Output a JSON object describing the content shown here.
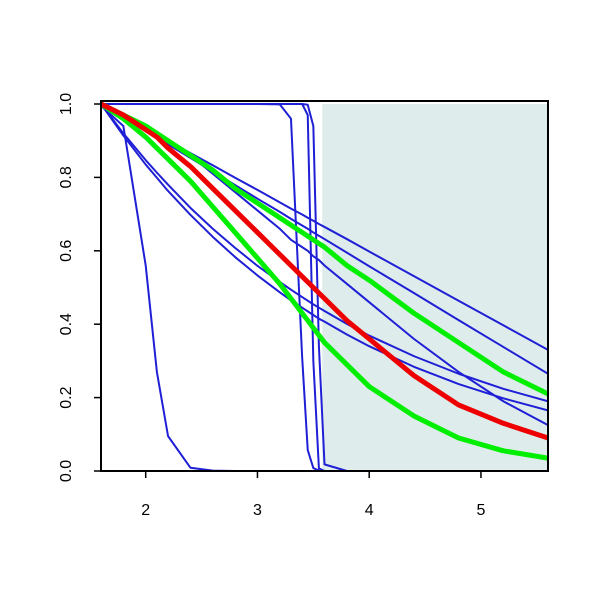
{
  "chart_data": {
    "type": "line",
    "x": [
      1.6,
      1.8,
      2.0,
      2.1,
      2.2,
      2.4,
      2.6,
      2.8,
      3.0,
      3.2,
      3.3,
      3.4,
      3.45,
      3.5,
      3.55,
      3.6,
      3.8,
      4.0,
      4.4,
      4.8,
      5.2,
      5.6
    ],
    "xlim": [
      1.6,
      5.6
    ],
    "xticks": [
      2,
      3,
      4,
      5
    ],
    "ylim": [
      0,
      1
    ],
    "yticks": [
      {
        "value": 0,
        "label": "0.0"
      },
      {
        "value": 0.2,
        "label": "0.2"
      },
      {
        "value": 0.4,
        "label": "0.4"
      },
      {
        "value": 0.6,
        "label": "0.6"
      },
      {
        "value": 0.8,
        "label": "0.8"
      },
      {
        "value": 1,
        "label": "1.0"
      }
    ],
    "shaded_region": {
      "xlim": [
        3.58,
        5.6
      ],
      "color": "#deeceb"
    },
    "series": [
      {
        "color": "#1f1fd6",
        "line_width": 2,
        "values": [
          0.995,
          0.94,
          0.56,
          0.27,
          0.095,
          0.009,
          0.001,
          0,
          0,
          0,
          0,
          0,
          0,
          0,
          0,
          0,
          0,
          0,
          0,
          0,
          0,
          0
        ]
      },
      {
        "color": "#1f1fd6",
        "line_width": 2,
        "values": [
          1,
          1,
          1,
          1,
          1,
          1,
          1,
          1,
          1,
          0.999,
          0.96,
          0.31,
          0.057,
          0.008,
          0.001,
          0,
          0,
          0,
          0,
          0,
          0,
          0
        ]
      },
      {
        "color": "#1f1fd6",
        "line_width": 2,
        "values": [
          1,
          1,
          1,
          1,
          1,
          1,
          1,
          1,
          1,
          1,
          1,
          1,
          0.97,
          0.3,
          0.007,
          0,
          0,
          0,
          0,
          0,
          0,
          0
        ]
      },
      {
        "color": "#1f1fd6",
        "line_width": 2,
        "values": [
          1,
          1,
          1,
          1,
          1,
          1,
          1,
          1,
          1,
          1,
          1,
          1,
          0.998,
          0.94,
          0.34,
          0.018,
          0,
          0,
          0,
          0,
          0,
          0
        ]
      },
      {
        "color": "#1f1fd6",
        "line_width": 2,
        "values": [
          1,
          0.967,
          0.933,
          0.916,
          0.9,
          0.866,
          0.833,
          0.799,
          0.766,
          0.732,
          0.715,
          0.699,
          0.69,
          0.682,
          0.673,
          0.665,
          0.632,
          0.598,
          0.531,
          0.464,
          0.397,
          0.33
        ]
      },
      {
        "color": "#1f1fd6",
        "line_width": 2,
        "values": [
          1,
          0.963,
          0.926,
          0.908,
          0.89,
          0.853,
          0.816,
          0.779,
          0.742,
          0.706,
          0.687,
          0.669,
          0.66,
          0.65,
          0.641,
          0.632,
          0.595,
          0.558,
          0.485,
          0.411,
          0.338,
          0.265
        ]
      },
      {
        "color": "#1f1fd6",
        "line_width": 2,
        "values": [
          1,
          0.92,
          0.847,
          0.813,
          0.78,
          0.717,
          0.66,
          0.608,
          0.559,
          0.515,
          0.494,
          0.474,
          0.464,
          0.454,
          0.445,
          0.436,
          0.401,
          0.369,
          0.313,
          0.265,
          0.224,
          0.19
        ]
      },
      {
        "color": "#1f1fd6",
        "line_width": 2,
        "values": [
          1,
          0.914,
          0.835,
          0.799,
          0.763,
          0.698,
          0.638,
          0.583,
          0.533,
          0.487,
          0.465,
          0.445,
          0.435,
          0.425,
          0.415,
          0.407,
          0.372,
          0.34,
          0.284,
          0.237,
          0.198,
          0.165
        ]
      },
      {
        "color": "#1f1fd6",
        "line_width": 2,
        "values": [
          1,
          0.97,
          0.94,
          0.92,
          0.9,
          0.86,
          0.81,
          0.76,
          0.71,
          0.66,
          0.63,
          0.61,
          0.6,
          0.585,
          0.575,
          0.56,
          0.51,
          0.46,
          0.36,
          0.27,
          0.19,
          0.125
        ]
      },
      {
        "color": "#00ee00",
        "line_width": 5,
        "values": [
          1,
          0.97,
          0.94,
          0.92,
          0.9,
          0.86,
          0.82,
          0.77,
          0.73,
          0.69,
          0.67,
          0.65,
          0.64,
          0.63,
          0.62,
          0.61,
          0.56,
          0.52,
          0.43,
          0.35,
          0.27,
          0.21
        ]
      },
      {
        "color": "#00ee00",
        "line_width": 5,
        "values": [
          1,
          0.96,
          0.91,
          0.88,
          0.85,
          0.79,
          0.72,
          0.65,
          0.58,
          0.51,
          0.47,
          0.43,
          0.41,
          0.39,
          0.37,
          0.35,
          0.29,
          0.23,
          0.15,
          0.09,
          0.055,
          0.035
        ]
      },
      {
        "color": "#ee0000",
        "line_width": 5,
        "values": [
          1,
          0.97,
          0.93,
          0.91,
          0.88,
          0.83,
          0.77,
          0.71,
          0.65,
          0.59,
          0.56,
          0.53,
          0.515,
          0.5,
          0.485,
          0.47,
          0.41,
          0.36,
          0.26,
          0.18,
          0.13,
          0.09
        ]
      }
    ]
  }
}
